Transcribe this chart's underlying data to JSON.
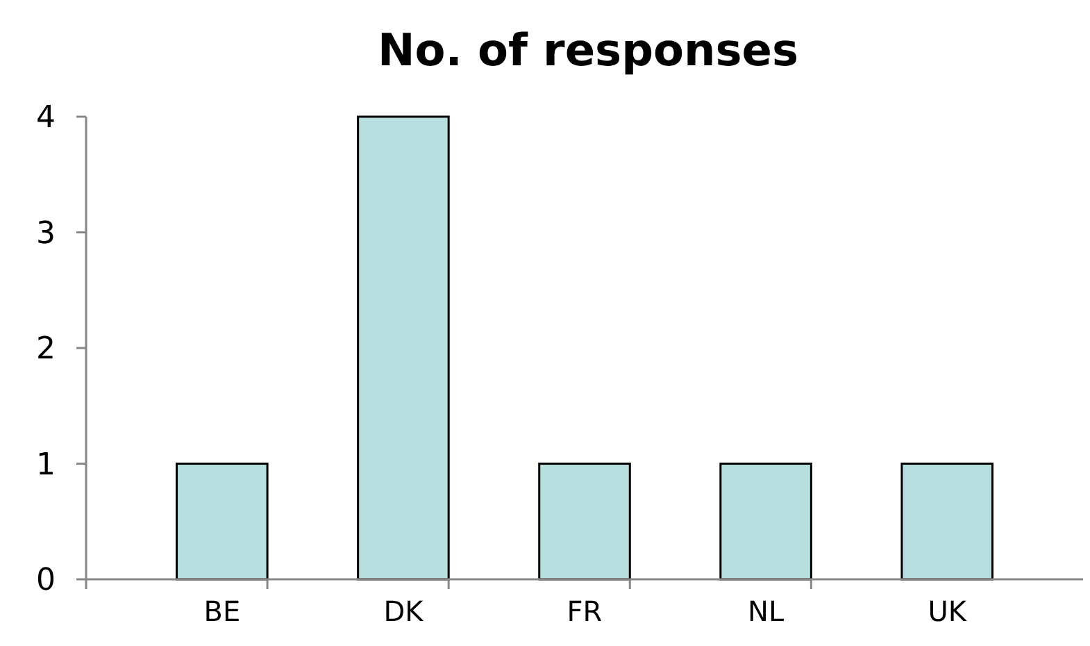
{
  "chart_data": {
    "type": "bar",
    "title": "No. of responses",
    "categories": [
      "BE",
      "DK",
      "FR",
      "NL",
      "UK"
    ],
    "values": [
      1,
      4,
      1,
      1,
      1
    ],
    "color": "#b7dfe0",
    "ylim": [
      0,
      4
    ],
    "yticks": [
      0,
      1,
      2,
      3,
      4
    ],
    "grid": false
  }
}
